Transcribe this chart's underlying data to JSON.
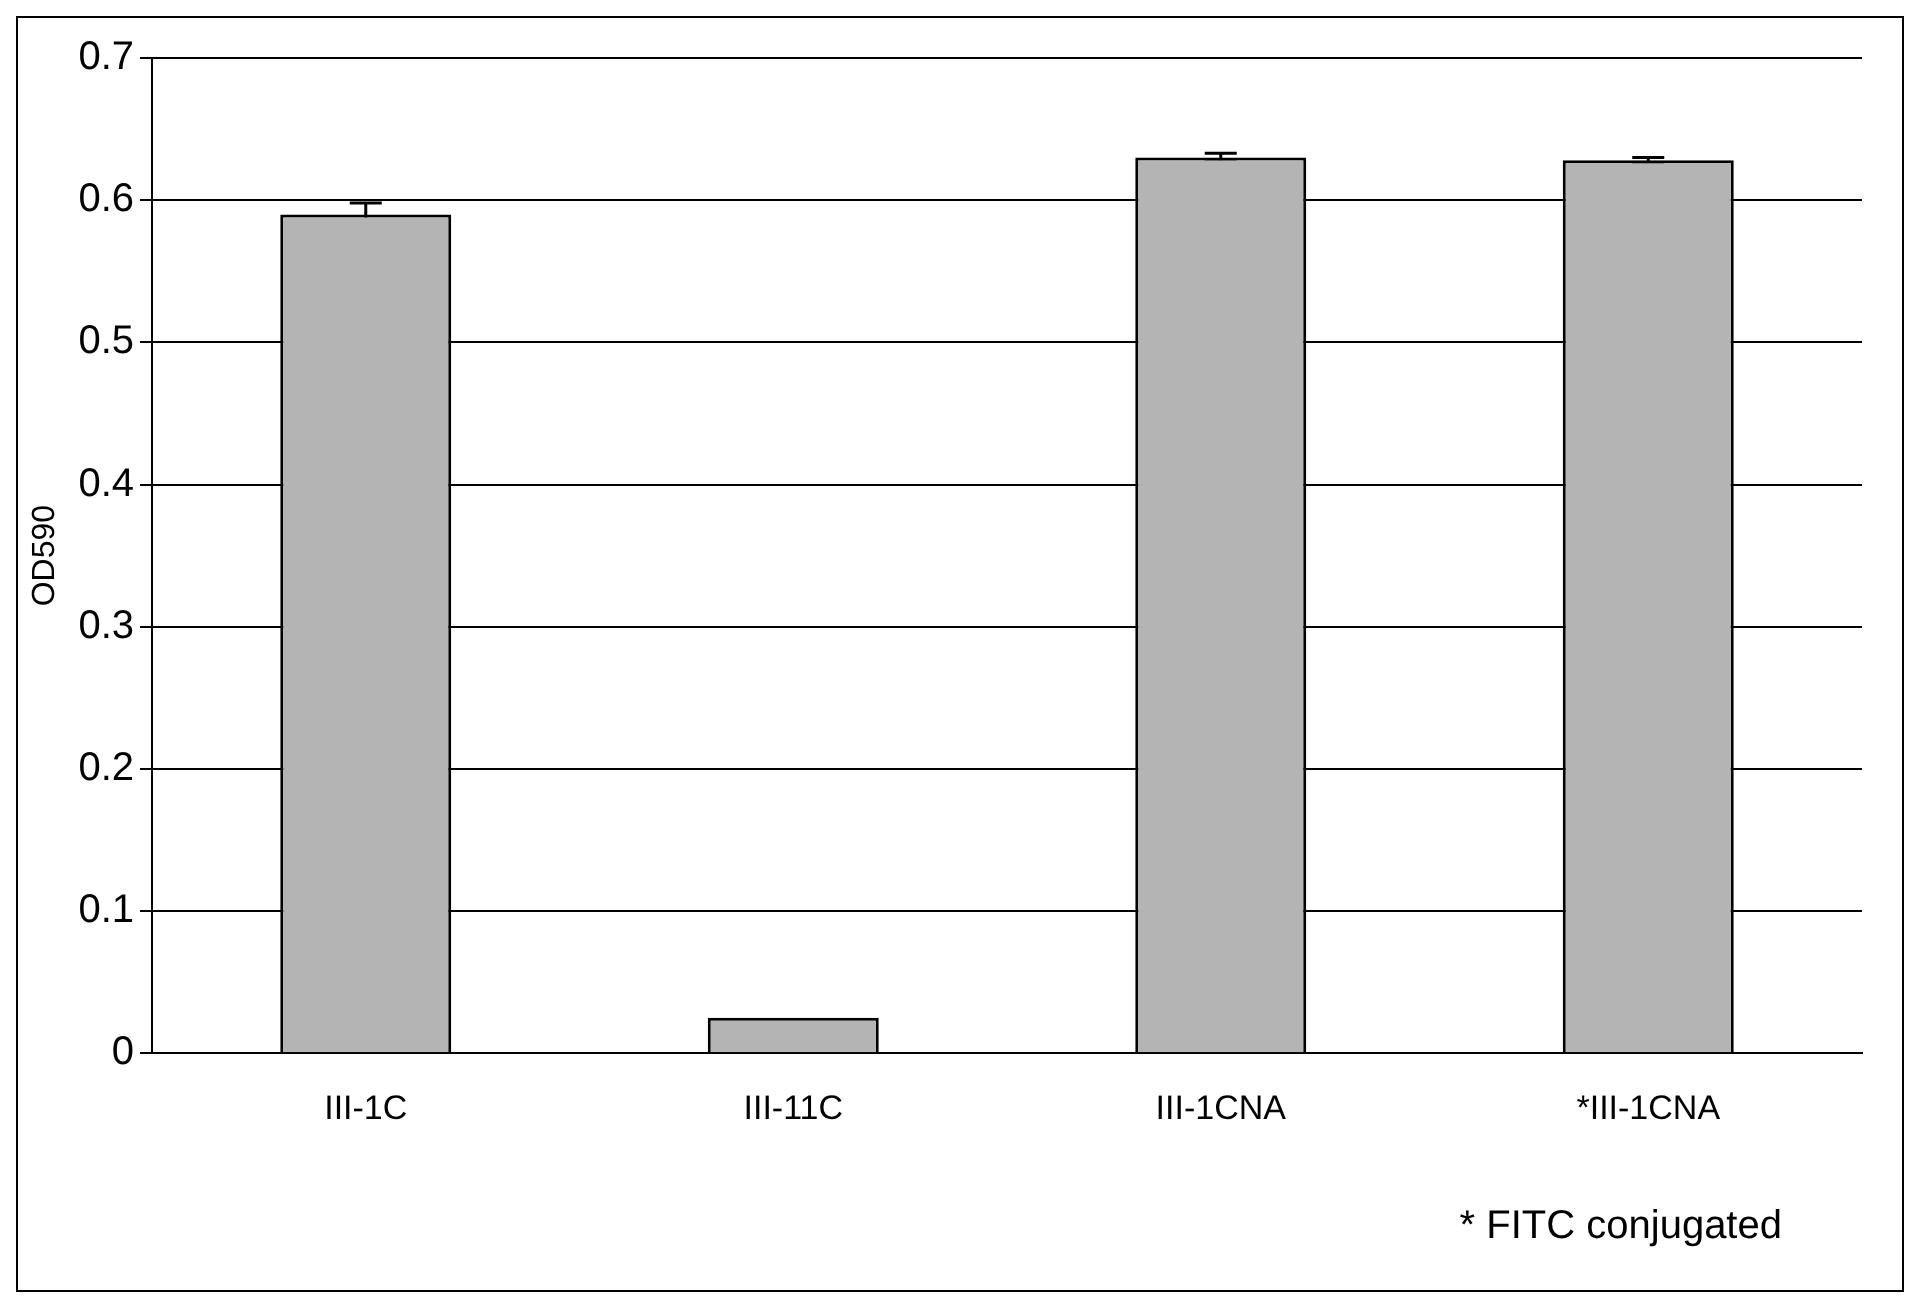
{
  "chart_data": {
    "type": "bar",
    "ylabel": "OD590",
    "categories": [
      "III-1C",
      "III-11C",
      "III-1CNA",
      "*III-1CNA"
    ],
    "values": [
      0.59,
      0.025,
      0.63,
      0.628
    ],
    "errors": [
      0.008,
      null,
      0.003,
      0.002
    ],
    "color": "#b4b4b4",
    "ylim": [
      0,
      0.7
    ],
    "yticks": [
      0,
      0.1,
      0.2,
      0.3,
      0.4,
      0.5,
      0.6,
      0.7
    ],
    "grid": "y",
    "legend": false,
    "annotations": [
      "* FITC conjugated"
    ]
  }
}
